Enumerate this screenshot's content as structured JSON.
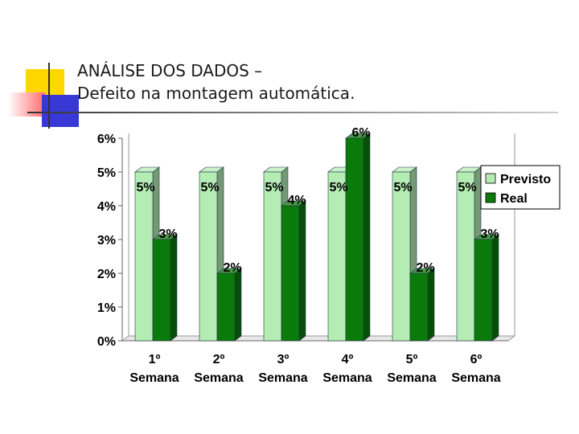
{
  "slide": {
    "title_line1": "ANÁLISE DOS DADOS –",
    "title_line2": "Defeito na montagem automática."
  },
  "chart_data": {
    "type": "bar",
    "style": "3d-clustered-columns",
    "categories": [
      [
        "1º",
        "Semana"
      ],
      [
        "2º",
        "Semana"
      ],
      [
        "3º",
        "Semana"
      ],
      [
        "4º",
        "Semana"
      ],
      [
        "5º",
        "Semana"
      ],
      [
        "6º",
        "Semana"
      ]
    ],
    "series": [
      {
        "name": "Previsto",
        "values": [
          5,
          5,
          5,
          5,
          5,
          5
        ],
        "labels": [
          "5%",
          "5%",
          "5%",
          "5%",
          "5%",
          "5%"
        ],
        "color": "#b4ecb4"
      },
      {
        "name": "Real",
        "values": [
          3,
          2,
          4,
          6,
          2,
          3
        ],
        "labels": [
          "3%",
          "2%",
          "4%",
          "6%",
          "2%",
          "3%"
        ],
        "color": "#0a7a0a"
      }
    ],
    "y_ticks": [
      "0%",
      "1%",
      "2%",
      "3%",
      "4%",
      "5%",
      "6%"
    ],
    "ylim": [
      0,
      6
    ],
    "legend_position": "right",
    "grid": false
  }
}
